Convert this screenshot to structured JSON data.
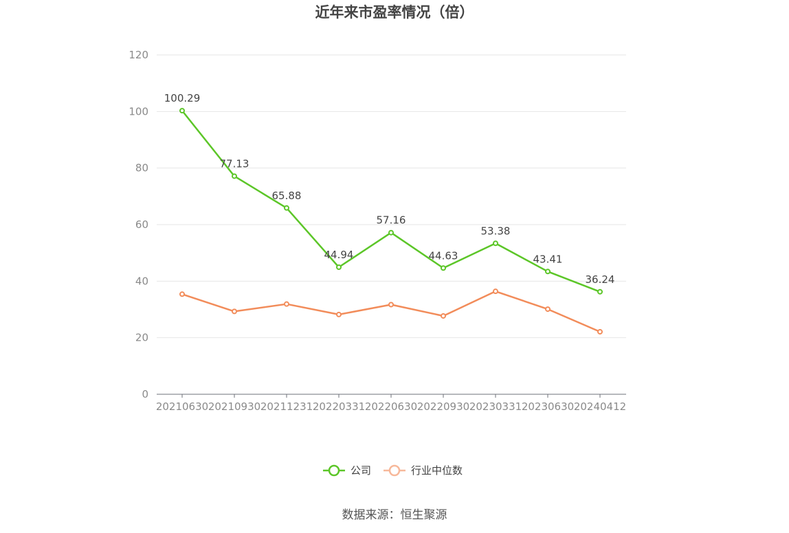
{
  "chart_data": {
    "type": "line",
    "title": "近年来市盈率情况（倍）",
    "categories": [
      "20210630",
      "20210930",
      "20211231",
      "20220331",
      "20220630",
      "20220930",
      "20230331",
      "20230630",
      "20240412"
    ],
    "ylim": [
      0,
      120
    ],
    "yticks": [
      "0",
      "20",
      "40",
      "60",
      "80",
      "100",
      "120"
    ],
    "grid": true,
    "legend_position": "bottom",
    "series": [
      {
        "name": "公司",
        "color": "#5cc628",
        "values": [
          100.29,
          77.13,
          65.88,
          44.94,
          57.16,
          44.63,
          53.38,
          43.41,
          36.24
        ],
        "labels": [
          "100.29",
          "77.13",
          "65.88",
          "44.94",
          "57.16",
          "44.63",
          "53.38",
          "43.41",
          "36.24"
        ]
      },
      {
        "name": "行业中位数",
        "color": "#f28c5a",
        "legend_color": "#f7b89a",
        "values": [
          35.4,
          29.3,
          31.9,
          28.2,
          31.7,
          27.7,
          36.4,
          30.1,
          22.1
        ]
      }
    ]
  },
  "source_text": "数据来源：恒生聚源"
}
